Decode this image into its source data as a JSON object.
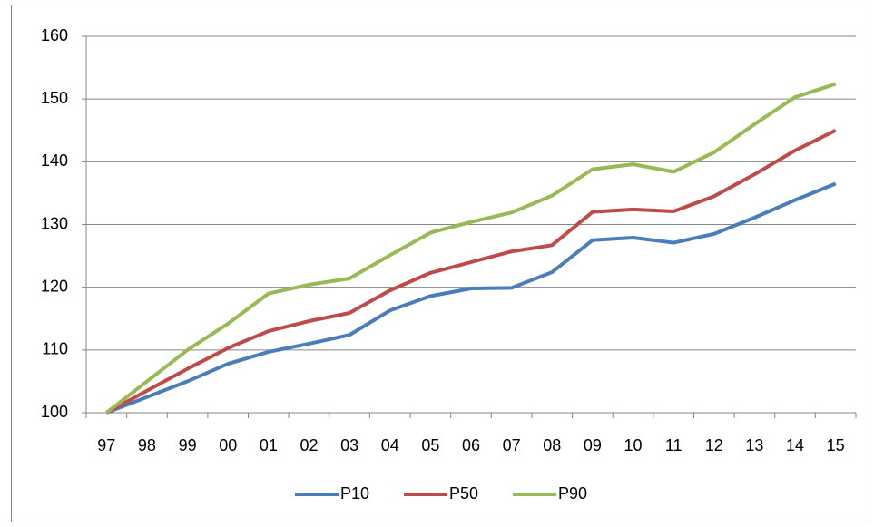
{
  "chart_data": {
    "type": "line",
    "categories": [
      "97",
      "98",
      "99",
      "00",
      "01",
      "02",
      "03",
      "04",
      "05",
      "06",
      "07",
      "08",
      "09",
      "10",
      "11",
      "12",
      "13",
      "14",
      "15"
    ],
    "series": [
      {
        "name": "P10",
        "color": "#4a7ebb",
        "values": [
          100,
          102.5,
          105,
          107.8,
          109.7,
          111,
          112.4,
          116.3,
          118.6,
          119.8,
          119.9,
          122.4,
          127.5,
          127.9,
          127.1,
          128.5,
          131.1,
          133.9,
          136.5
        ]
      },
      {
        "name": "P50",
        "color": "#be4b48",
        "values": [
          100,
          103.5,
          107,
          110.3,
          113,
          114.6,
          115.9,
          119.5,
          122.3,
          124,
          125.7,
          126.7,
          132,
          132.4,
          132.1,
          134.5,
          138,
          141.8,
          145
        ]
      },
      {
        "name": "P90",
        "color": "#98b954",
        "values": [
          100,
          105,
          110,
          114.2,
          119,
          120.4,
          121.4,
          125.1,
          128.7,
          130.4,
          131.9,
          134.6,
          138.8,
          139.6,
          138.4,
          141.5,
          146,
          150.3,
          152.4
        ]
      }
    ],
    "ylim": [
      100,
      160
    ],
    "yticks": [
      100,
      110,
      120,
      130,
      140,
      150,
      160
    ],
    "grid": true,
    "legend": "bottom"
  }
}
